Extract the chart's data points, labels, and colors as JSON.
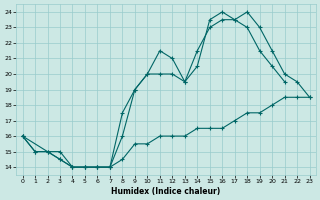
{
  "xlabel": "Humidex (Indice chaleur)",
  "bg_color": "#cce8e4",
  "grid_color": "#99cccc",
  "line_color": "#006666",
  "xlim": [
    -0.5,
    23.5
  ],
  "ylim": [
    13.5,
    24.5
  ],
  "xticks": [
    0,
    1,
    2,
    3,
    4,
    5,
    6,
    7,
    8,
    9,
    10,
    11,
    12,
    13,
    14,
    15,
    16,
    17,
    18,
    19,
    20,
    21,
    22,
    23
  ],
  "yticks": [
    14,
    15,
    16,
    17,
    18,
    19,
    20,
    21,
    22,
    23,
    24
  ],
  "line1_x": [
    0,
    1,
    2,
    3,
    4,
    5,
    6,
    7,
    8,
    9,
    10,
    11,
    12,
    13,
    14,
    15,
    16,
    17,
    18,
    19,
    20,
    21,
    22,
    23
  ],
  "line1_y": [
    16,
    15.0,
    15.0,
    15.0,
    14.0,
    14.0,
    14.0,
    14.0,
    14.5,
    15.5,
    15.5,
    16.0,
    16.0,
    16.0,
    16.5,
    16.5,
    16.5,
    17.0,
    17.5,
    17.5,
    18.0,
    18.5,
    18.5,
    18.5
  ],
  "line2_x": [
    0,
    1,
    2,
    3,
    4,
    5,
    6,
    7,
    8,
    9,
    10,
    11,
    12,
    13,
    14,
    15,
    16,
    17,
    18,
    19,
    20,
    21
  ],
  "line2_y": [
    16,
    15.0,
    15.0,
    14.5,
    14.0,
    14.0,
    14.0,
    14.0,
    17.5,
    19.0,
    20.0,
    21.5,
    21.0,
    19.5,
    21.5,
    23.0,
    23.5,
    23.5,
    23.0,
    21.5,
    20.5,
    19.5
  ],
  "line3_x": [
    0,
    3,
    4,
    5,
    6,
    7,
    8,
    9,
    10,
    11,
    12,
    13,
    14,
    15,
    16,
    17,
    18,
    19,
    20,
    21,
    22,
    23
  ],
  "line3_y": [
    16,
    14.5,
    14.0,
    14.0,
    14.0,
    14.0,
    16.0,
    19.0,
    20.0,
    20.0,
    20.0,
    19.5,
    20.5,
    23.5,
    24.0,
    23.5,
    24.0,
    23.0,
    21.5,
    20.0,
    19.5,
    18.5
  ]
}
